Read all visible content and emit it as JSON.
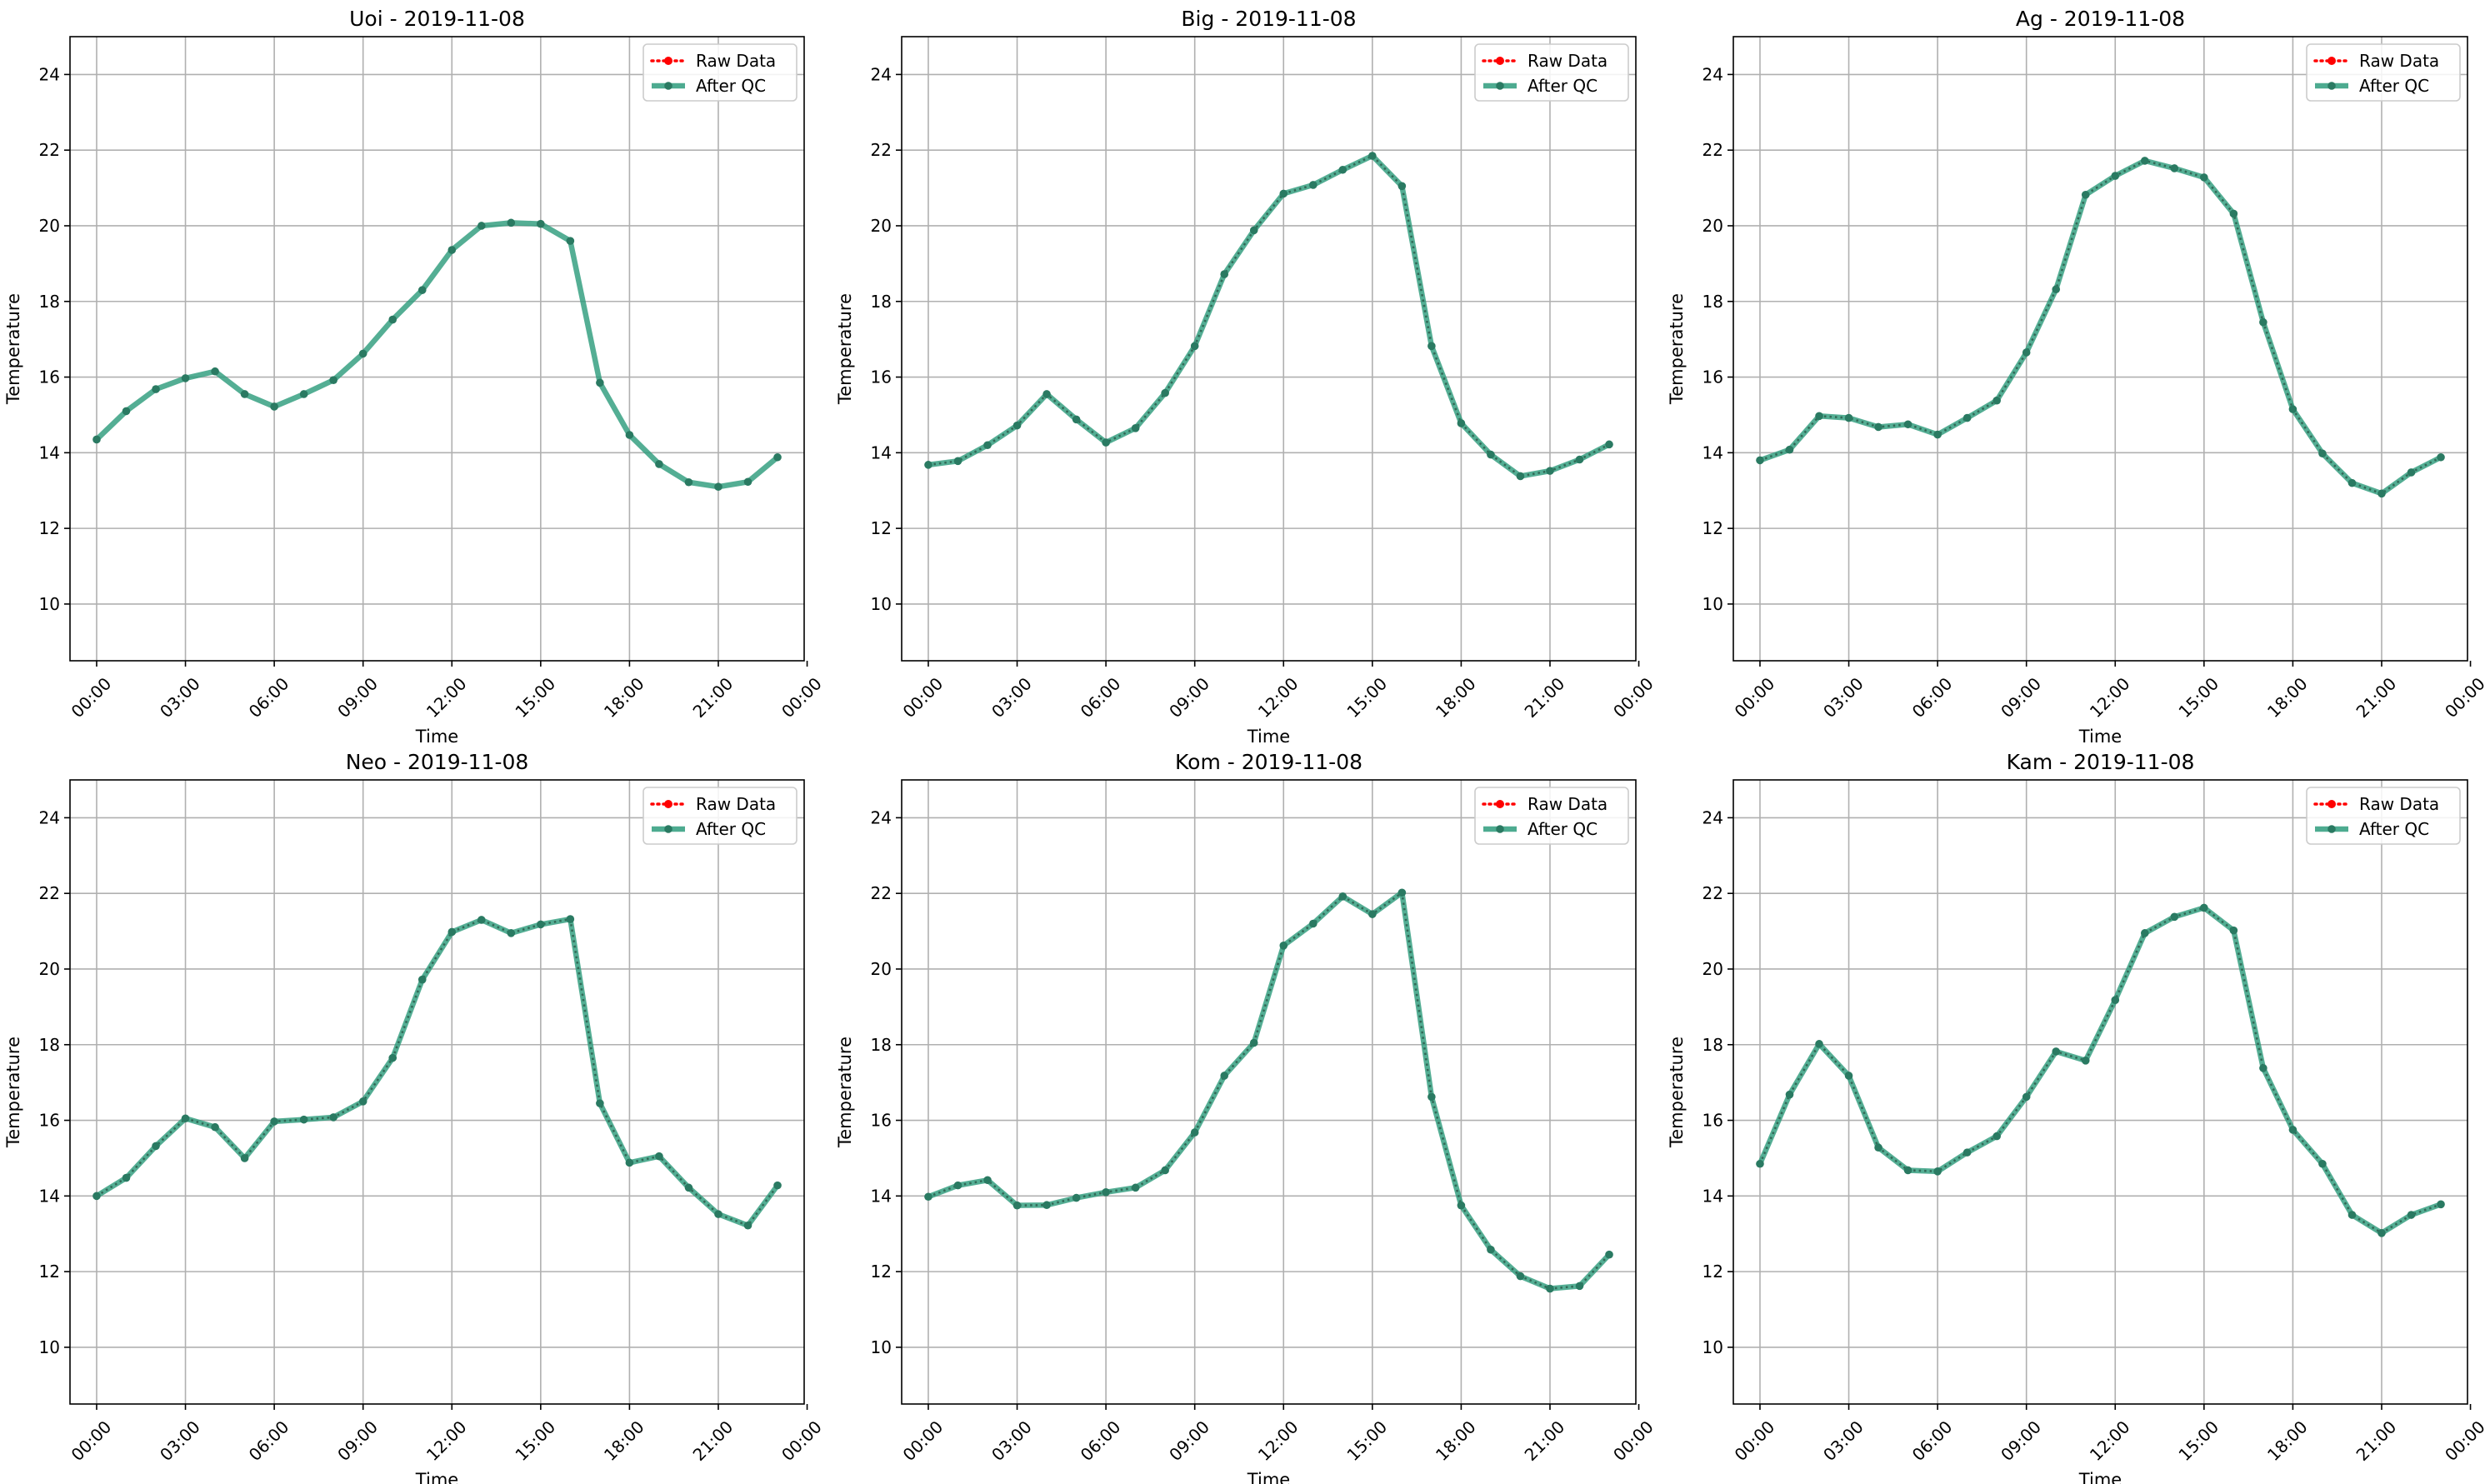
{
  "x_ticks": [
    "00:00",
    "03:00",
    "06:00",
    "09:00",
    "12:00",
    "15:00",
    "18:00",
    "21:00",
    "00:00"
  ],
  "y_ticks": [
    "10",
    "12",
    "14",
    "16",
    "18",
    "20",
    "22",
    "24"
  ],
  "colors": {
    "raw": "#ff0000",
    "qc": "#2e9c7d",
    "qc_marker": "#2a7a62",
    "grid": "#b0b0b0"
  },
  "chart_data": [
    {
      "type": "line",
      "title": "Uoi - 2019-11-08",
      "xlabel": "Time",
      "ylabel": "Temperature",
      "xlim_hours": [
        -0.9,
        23.9
      ],
      "ylim": [
        8.5,
        25.0
      ],
      "legend": "top-right",
      "grid": true,
      "x_hours": [
        0,
        1,
        2,
        3,
        4,
        5,
        6,
        7,
        8,
        9,
        10,
        11,
        12,
        13,
        14,
        15,
        16,
        17,
        18,
        19,
        20,
        21,
        22,
        23
      ],
      "series": [
        {
          "name": "Raw Data",
          "style": "dotted",
          "values": [
            14.35,
            15.1,
            15.68,
            15.97,
            16.15,
            15.55,
            15.22,
            15.55,
            15.92,
            16.62,
            17.52,
            18.3,
            19.36,
            20.0,
            20.08,
            20.05,
            19.6,
            15.85,
            14.47,
            13.7,
            13.22,
            13.1,
            13.23,
            13.88
          ]
        },
        {
          "name": "After QC",
          "style": "solid",
          "values": [
            14.35,
            15.1,
            15.68,
            15.97,
            16.15,
            15.55,
            15.22,
            15.55,
            15.92,
            16.62,
            17.52,
            18.3,
            19.36,
            20.0,
            20.08,
            20.05,
            19.6,
            15.85,
            14.47,
            13.7,
            13.22,
            13.1,
            13.23,
            13.88
          ]
        }
      ]
    },
    {
      "type": "line",
      "title": "Big - 2019-11-08",
      "xlabel": "Time",
      "ylabel": "Temperature",
      "xlim_hours": [
        -0.9,
        23.9
      ],
      "ylim": [
        8.5,
        25.0
      ],
      "legend": "top-right",
      "grid": true,
      "x_hours": [
        0,
        1,
        2,
        3,
        4,
        5,
        6,
        7,
        8,
        9,
        10,
        11,
        12,
        13,
        14,
        15,
        16,
        17,
        18,
        19,
        20,
        21,
        22,
        23
      ],
      "series": [
        {
          "name": "Raw Data",
          "style": "dotted",
          "values": [
            13.68,
            13.78,
            14.2,
            14.72,
            15.55,
            14.88,
            14.27,
            14.65,
            15.58,
            16.82,
            18.72,
            19.88,
            20.85,
            21.08,
            21.48,
            21.85,
            21.05,
            16.82,
            14.78,
            13.95,
            13.38,
            13.52,
            13.82,
            14.22
          ]
        },
        {
          "name": "After QC",
          "style": "solid",
          "values": [
            13.68,
            13.78,
            14.2,
            14.72,
            15.55,
            14.88,
            14.27,
            14.65,
            15.58,
            16.82,
            18.72,
            19.88,
            20.85,
            21.08,
            21.48,
            21.85,
            21.05,
            16.82,
            14.78,
            13.95,
            13.38,
            13.52,
            13.82,
            14.22
          ]
        }
      ]
    },
    {
      "type": "line",
      "title": "Ag - 2019-11-08",
      "xlabel": "Time",
      "ylabel": "Temperature",
      "xlim_hours": [
        -0.9,
        23.9
      ],
      "ylim": [
        8.5,
        25.0
      ],
      "legend": "top-right",
      "grid": true,
      "x_hours": [
        0,
        1,
        2,
        3,
        4,
        5,
        6,
        7,
        8,
        9,
        10,
        11,
        12,
        13,
        14,
        15,
        16,
        17,
        18,
        19,
        20,
        21,
        22,
        23
      ],
      "series": [
        {
          "name": "Raw Data",
          "style": "dotted",
          "values": [
            13.8,
            14.08,
            14.97,
            14.92,
            14.68,
            14.75,
            14.48,
            14.92,
            15.38,
            16.65,
            18.32,
            20.82,
            21.32,
            21.72,
            21.52,
            21.28,
            20.32,
            17.45,
            15.15,
            13.98,
            13.2,
            12.92,
            13.48,
            13.88
          ]
        },
        {
          "name": "After QC",
          "style": "solid",
          "values": [
            13.8,
            14.08,
            14.97,
            14.92,
            14.68,
            14.75,
            14.48,
            14.92,
            15.38,
            16.65,
            18.32,
            20.82,
            21.32,
            21.72,
            21.52,
            21.28,
            20.32,
            17.45,
            15.15,
            13.98,
            13.2,
            12.92,
            13.48,
            13.88
          ]
        }
      ]
    },
    {
      "type": "line",
      "title": "Neo - 2019-11-08",
      "xlabel": "Time",
      "ylabel": "Temperature",
      "xlim_hours": [
        -0.9,
        23.9
      ],
      "ylim": [
        8.5,
        25.0
      ],
      "legend": "top-right",
      "grid": true,
      "x_hours": [
        0,
        1,
        2,
        3,
        4,
        5,
        6,
        7,
        8,
        9,
        10,
        11,
        12,
        13,
        14,
        15,
        16,
        17,
        18,
        19,
        20,
        21,
        22,
        23
      ],
      "series": [
        {
          "name": "Raw Data",
          "style": "dotted",
          "values": [
            14.0,
            14.48,
            15.32,
            16.05,
            15.82,
            15.0,
            15.97,
            16.02,
            16.08,
            16.5,
            17.65,
            19.72,
            20.98,
            21.3,
            20.95,
            21.18,
            21.32,
            16.45,
            14.88,
            15.05,
            14.22,
            13.52,
            13.22,
            14.28
          ]
        },
        {
          "name": "After QC",
          "style": "solid",
          "values": [
            14.0,
            14.48,
            15.32,
            16.05,
            15.82,
            15.0,
            15.97,
            16.02,
            16.08,
            16.5,
            17.65,
            19.72,
            20.98,
            21.3,
            20.95,
            21.18,
            21.32,
            16.45,
            14.88,
            15.05,
            14.22,
            13.52,
            13.22,
            14.28
          ]
        }
      ]
    },
    {
      "type": "line",
      "title": "Kom - 2019-11-08",
      "xlabel": "Time",
      "ylabel": "Temperature",
      "xlim_hours": [
        -0.9,
        23.9
      ],
      "ylim": [
        8.5,
        25.0
      ],
      "legend": "top-right",
      "grid": true,
      "x_hours": [
        0,
        1,
        2,
        3,
        4,
        5,
        6,
        7,
        8,
        9,
        10,
        11,
        12,
        13,
        14,
        15,
        16,
        17,
        18,
        19,
        20,
        21,
        22,
        23
      ],
      "series": [
        {
          "name": "Raw Data",
          "style": "dotted",
          "values": [
            13.98,
            14.28,
            14.42,
            13.75,
            13.76,
            13.95,
            14.1,
            14.22,
            14.68,
            15.68,
            17.18,
            18.05,
            20.62,
            21.2,
            21.92,
            21.45,
            22.02,
            16.62,
            13.75,
            12.58,
            11.88,
            11.55,
            11.62,
            12.45
          ]
        },
        {
          "name": "After QC",
          "style": "solid",
          "values": [
            13.98,
            14.28,
            14.42,
            13.75,
            13.76,
            13.95,
            14.1,
            14.22,
            14.68,
            15.68,
            17.18,
            18.05,
            20.62,
            21.2,
            21.92,
            21.45,
            22.02,
            16.62,
            13.75,
            12.58,
            11.88,
            11.55,
            11.62,
            12.45
          ]
        }
      ]
    },
    {
      "type": "line",
      "title": "Kam - 2019-11-08",
      "xlabel": "Time",
      "ylabel": "Temperature",
      "xlim_hours": [
        -0.9,
        23.9
      ],
      "ylim": [
        8.5,
        25.0
      ],
      "legend": "top-right",
      "grid": true,
      "x_hours": [
        0,
        1,
        2,
        3,
        4,
        5,
        6,
        7,
        8,
        9,
        10,
        11,
        12,
        13,
        14,
        15,
        16,
        17,
        18,
        19,
        20,
        21,
        22,
        23
      ],
      "series": [
        {
          "name": "Raw Data",
          "style": "dotted",
          "values": [
            14.85,
            16.68,
            18.02,
            17.18,
            15.28,
            14.68,
            14.65,
            15.15,
            15.58,
            16.62,
            17.82,
            17.58,
            19.18,
            20.95,
            21.38,
            21.62,
            21.02,
            17.38,
            15.75,
            14.85,
            13.5,
            13.02,
            13.5,
            13.78
          ]
        },
        {
          "name": "After QC",
          "style": "solid",
          "values": [
            14.85,
            16.68,
            18.02,
            17.18,
            15.28,
            14.68,
            14.65,
            15.15,
            15.58,
            16.62,
            17.82,
            17.58,
            19.18,
            20.95,
            21.38,
            21.62,
            21.02,
            17.38,
            15.75,
            14.85,
            13.5,
            13.02,
            13.5,
            13.78
          ]
        }
      ]
    }
  ]
}
